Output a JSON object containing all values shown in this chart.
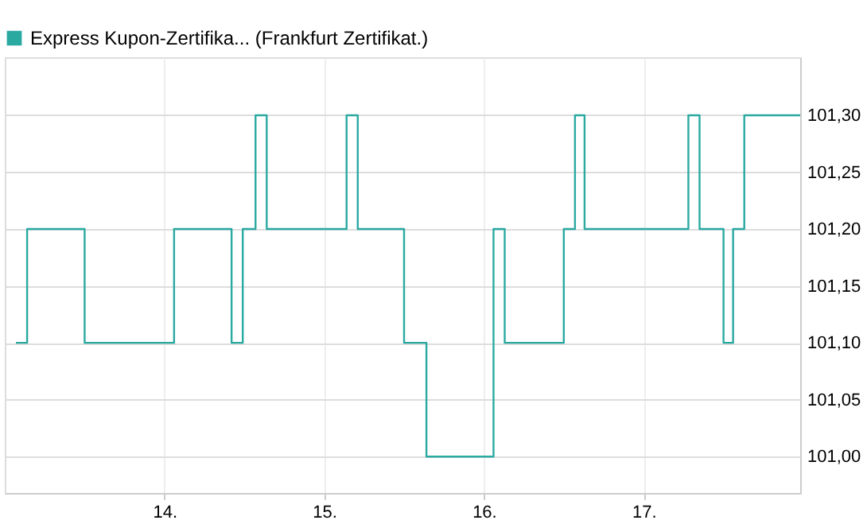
{
  "chart_data": {
    "type": "step",
    "title": null,
    "x": [
      13.07,
      13.14,
      13.5,
      14.06,
      14.42,
      14.49,
      14.57,
      14.64,
      15.14,
      15.21,
      15.5,
      15.64,
      16.06,
      16.13,
      16.5,
      16.57,
      16.63,
      17.28,
      17.35,
      17.5,
      17.56,
      17.63,
      17.98
    ],
    "series": [
      {
        "name": "Express Kupon-Zertifika... (Frankfurt Zertifikat.)",
        "color": "#2aa9a1",
        "values": [
          101.1,
          101.2,
          101.1,
          101.2,
          101.1,
          101.2,
          101.3,
          101.2,
          101.3,
          101.2,
          101.1,
          101.0,
          101.2,
          101.1,
          101.2,
          101.3,
          101.2,
          101.3,
          101.2,
          101.1,
          101.2,
          101.3,
          101.3
        ]
      }
    ],
    "xlim": [
      13.0,
      17.98
    ],
    "xticks": [
      {
        "value": 14,
        "label": "14."
      },
      {
        "value": 15,
        "label": "15."
      },
      {
        "value": 16,
        "label": "16."
      },
      {
        "value": 17,
        "label": "17."
      }
    ],
    "ylim": [
      100.968,
      101.351
    ],
    "yticks": [
      {
        "value": 101.0,
        "label": "101,00"
      },
      {
        "value": 101.05,
        "label": "101,05"
      },
      {
        "value": 101.1,
        "label": "101,10"
      },
      {
        "value": 101.15,
        "label": "101,15"
      },
      {
        "value": 101.2,
        "label": "101,20"
      },
      {
        "value": 101.25,
        "label": "101,25"
      },
      {
        "value": 101.3,
        "label": "101,30"
      }
    ],
    "grid": true,
    "legend": "top left",
    "marker": "none",
    "line_style": "solid"
  }
}
